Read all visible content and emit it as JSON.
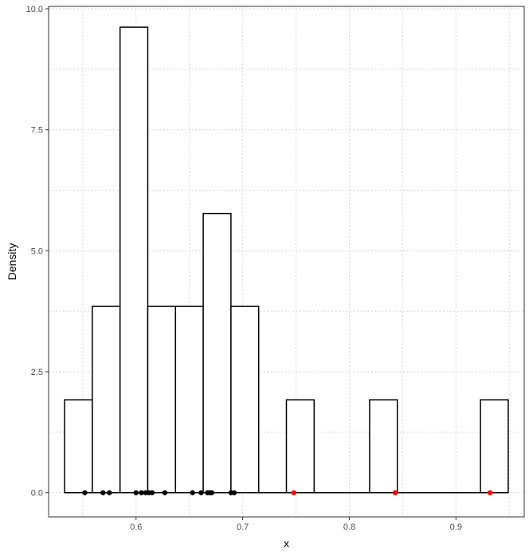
{
  "chart_data": {
    "type": "histogram",
    "title": "",
    "xlabel": "x",
    "ylabel": "Density",
    "xlim": [
      0.518,
      0.964
    ],
    "ylim": [
      -0.5,
      10.05
    ],
    "x_ticks": [
      0.6,
      0.7,
      0.8,
      0.9
    ],
    "x_tick_labels": [
      "0.6",
      "0.7",
      "0.8",
      "0.9"
    ],
    "y_ticks": [
      0.0,
      2.5,
      5.0,
      7.5,
      10.0
    ],
    "y_tick_labels": [
      "0.0",
      "2.5",
      "5.0",
      "7.5",
      "10.0"
    ],
    "grid": true,
    "bins": [
      {
        "x0": 0.533,
        "x1": 0.559,
        "density": 1.92
      },
      {
        "x0": 0.559,
        "x1": 0.585,
        "density": 3.85
      },
      {
        "x0": 0.585,
        "x1": 0.611,
        "density": 9.62
      },
      {
        "x0": 0.611,
        "x1": 0.637,
        "density": 3.85
      },
      {
        "x0": 0.637,
        "x1": 0.663,
        "density": 3.85
      },
      {
        "x0": 0.663,
        "x1": 0.689,
        "density": 5.77
      },
      {
        "x0": 0.689,
        "x1": 0.715,
        "density": 3.85
      },
      {
        "x0": 0.715,
        "x1": 0.741,
        "density": 0.0
      },
      {
        "x0": 0.741,
        "x1": 0.767,
        "density": 1.92
      },
      {
        "x0": 0.767,
        "x1": 0.793,
        "density": 0.0
      },
      {
        "x0": 0.793,
        "x1": 0.819,
        "density": 0.0
      },
      {
        "x0": 0.819,
        "x1": 0.845,
        "density": 1.92
      },
      {
        "x0": 0.845,
        "x1": 0.871,
        "density": 0.0
      },
      {
        "x0": 0.871,
        "x1": 0.897,
        "density": 0.0
      },
      {
        "x0": 0.897,
        "x1": 0.923,
        "density": 0.0
      },
      {
        "x0": 0.923,
        "x1": 0.949,
        "density": 1.92
      }
    ],
    "points": [
      {
        "x": 0.552,
        "y": 0,
        "color": "#000000"
      },
      {
        "x": 0.569,
        "y": 0,
        "color": "#000000"
      },
      {
        "x": 0.575,
        "y": 0,
        "color": "#000000"
      },
      {
        "x": 0.6,
        "y": 0,
        "color": "#000000"
      },
      {
        "x": 0.605,
        "y": 0,
        "color": "#000000"
      },
      {
        "x": 0.609,
        "y": 0,
        "color": "#000000"
      },
      {
        "x": 0.612,
        "y": 0,
        "color": "#000000"
      },
      {
        "x": 0.615,
        "y": 0,
        "color": "#000000"
      },
      {
        "x": 0.627,
        "y": 0,
        "color": "#000000"
      },
      {
        "x": 0.653,
        "y": 0,
        "color": "#000000"
      },
      {
        "x": 0.661,
        "y": 0,
        "color": "#000000"
      },
      {
        "x": 0.667,
        "y": 0,
        "color": "#000000"
      },
      {
        "x": 0.669,
        "y": 0,
        "color": "#000000"
      },
      {
        "x": 0.671,
        "y": 0,
        "color": "#000000"
      },
      {
        "x": 0.689,
        "y": 0,
        "color": "#000000"
      },
      {
        "x": 0.692,
        "y": 0,
        "color": "#000000"
      },
      {
        "x": 0.748,
        "y": 0,
        "color": "#ff0000"
      },
      {
        "x": 0.843,
        "y": 0,
        "color": "#ff0000"
      },
      {
        "x": 0.932,
        "y": 0,
        "color": "#ff0000"
      }
    ],
    "colors": {
      "bar_fill": "#ffffff",
      "bar_stroke": "#000000",
      "grid": "#c8c8c8",
      "panel_border": "#333333",
      "normal_point": "#000000",
      "highlight_point": "#ff0000"
    }
  }
}
